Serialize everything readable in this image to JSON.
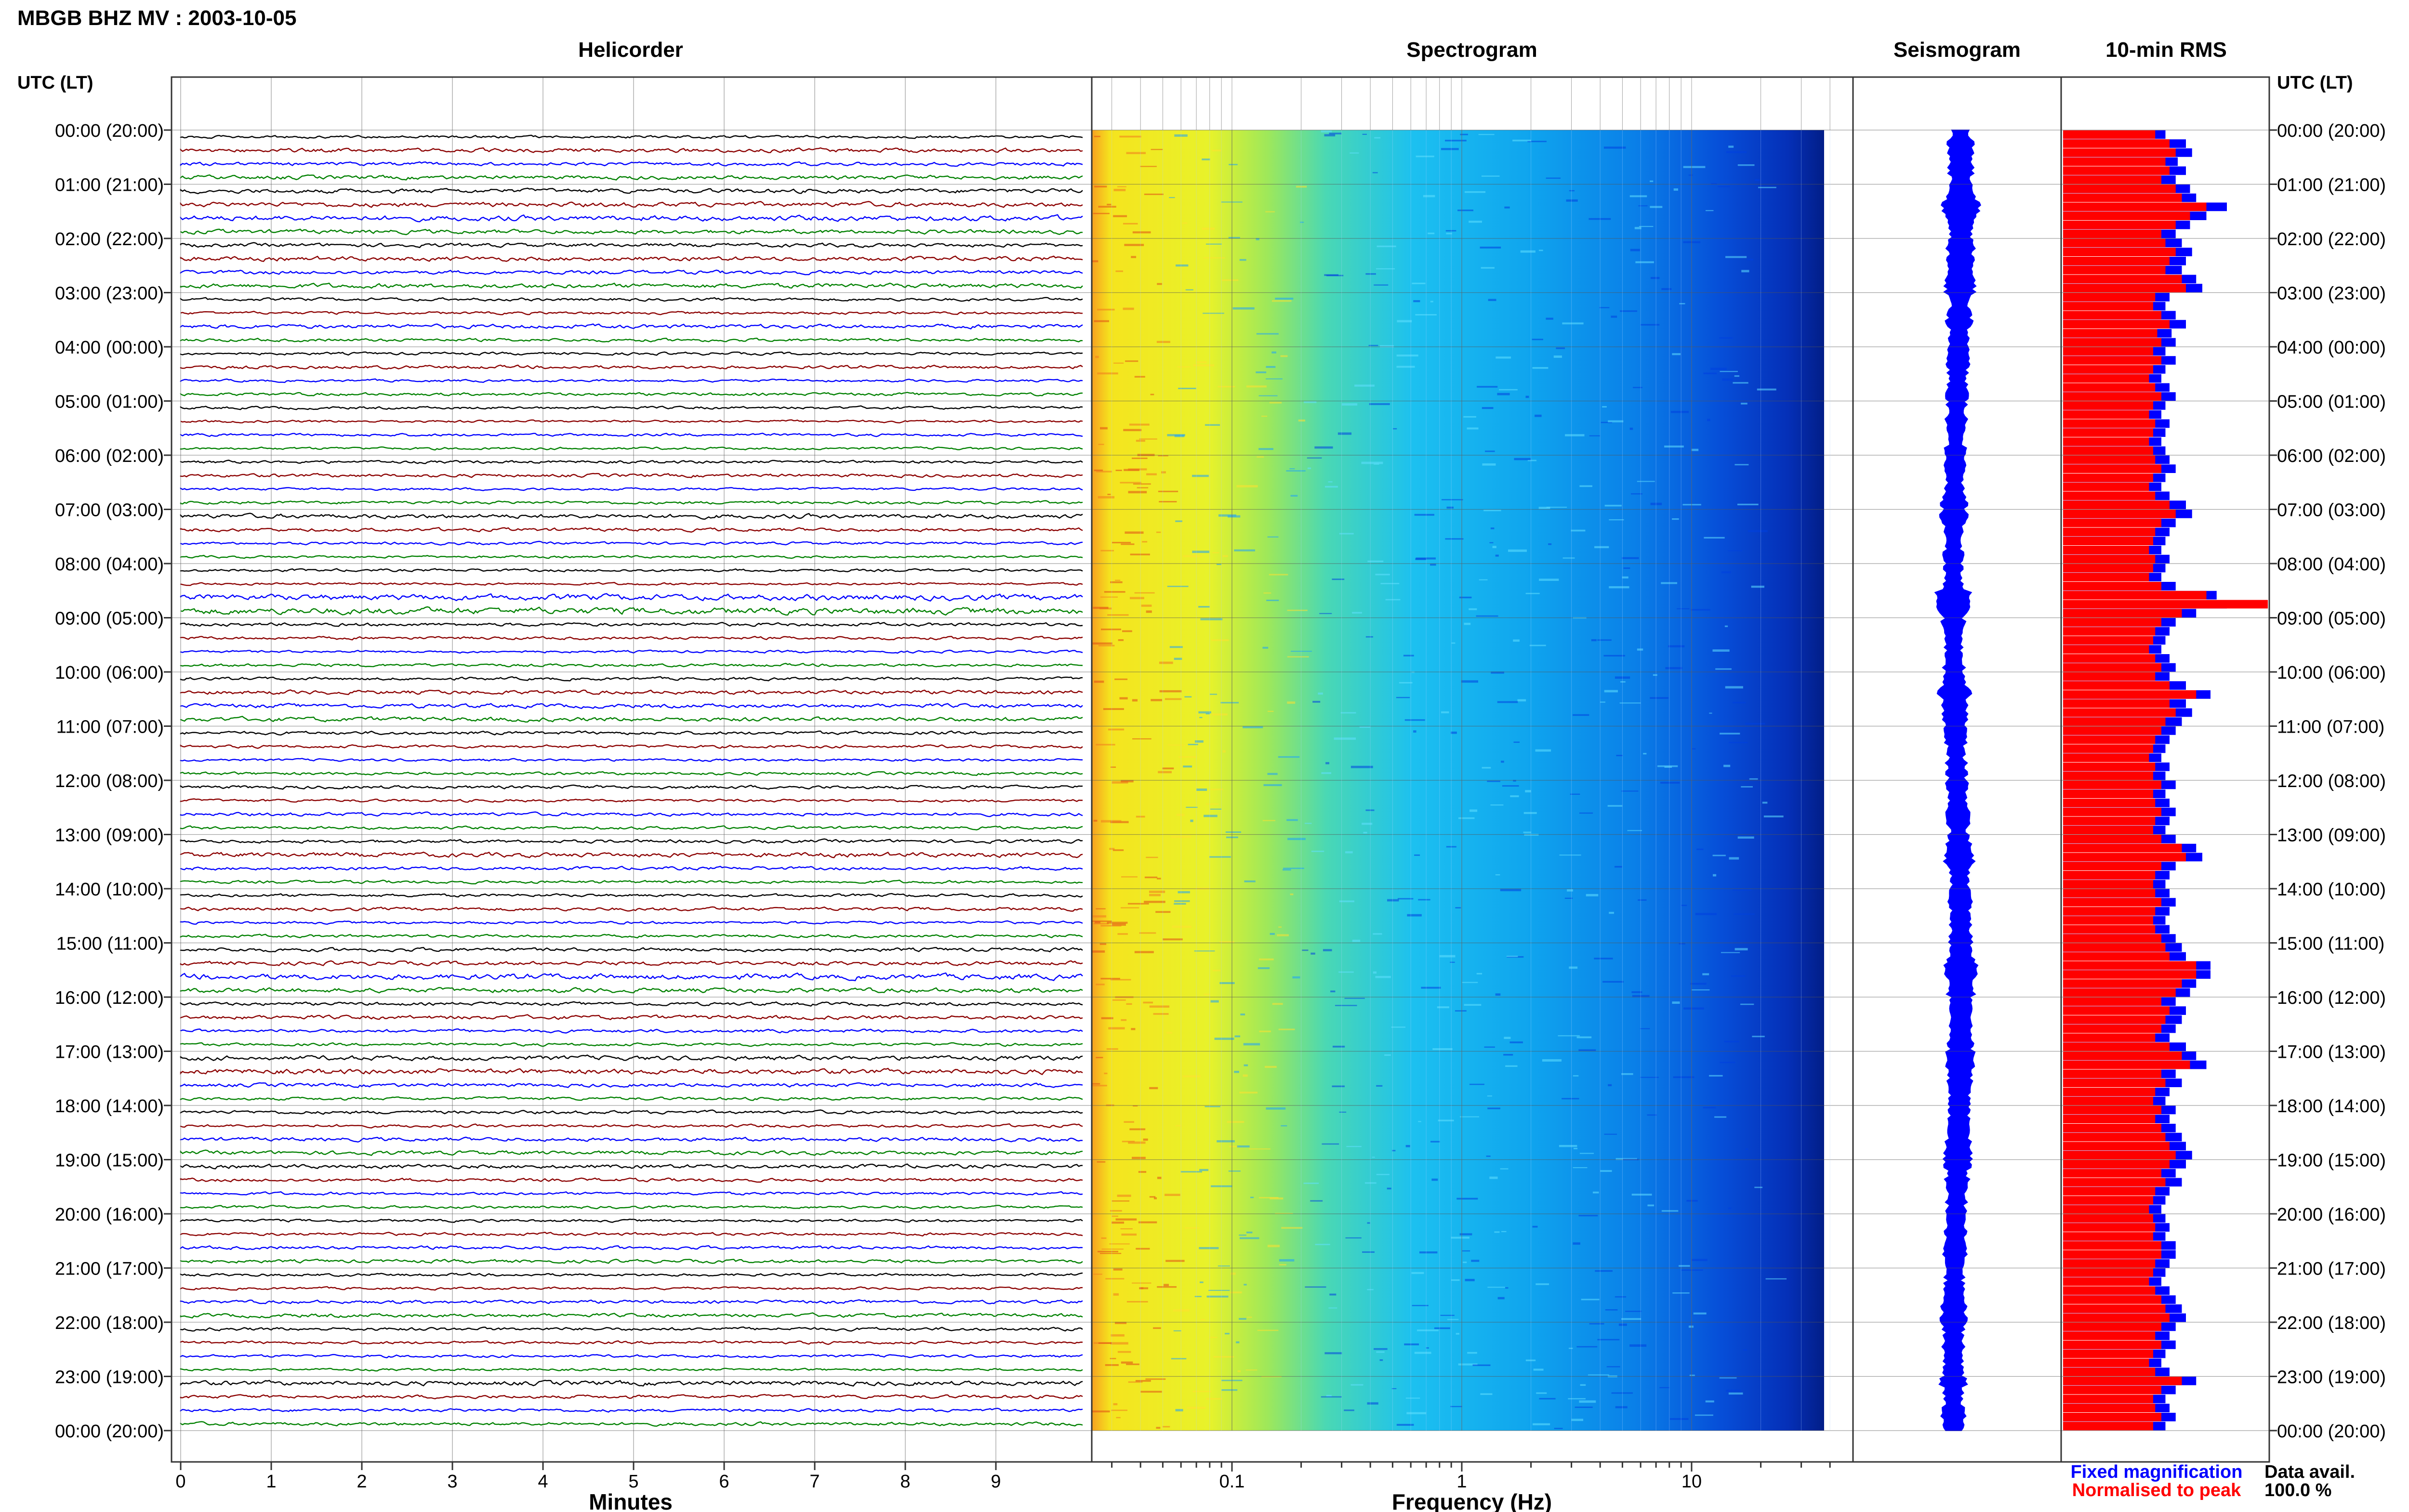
{
  "title": "MBGB BHZ MV : 2003-10-05",
  "time_axis": {
    "header": "UTC (LT)",
    "labels": [
      "00:00 (20:00)",
      "01:00 (21:00)",
      "02:00 (22:00)",
      "03:00 (23:00)",
      "04:00 (00:00)",
      "05:00 (01:00)",
      "06:00 (02:00)",
      "07:00 (03:00)",
      "08:00 (04:00)",
      "09:00 (05:00)",
      "10:00 (06:00)",
      "11:00 (07:00)",
      "12:00 (08:00)",
      "13:00 (09:00)",
      "14:00 (10:00)",
      "15:00 (11:00)",
      "16:00 (12:00)",
      "17:00 (13:00)",
      "18:00 (14:00)",
      "19:00 (15:00)",
      "20:00 (16:00)",
      "21:00 (17:00)",
      "22:00 (18:00)",
      "23:00 (19:00)",
      "00:00 (20:00)"
    ]
  },
  "panels": {
    "helicorder": "Helicorder",
    "spectrogram": "Spectrogram",
    "seismogram": "Seismogram",
    "rms": "10-min RMS"
  },
  "helicorder": {
    "xlabel": "Minutes",
    "ticks": [
      "0",
      "1",
      "2",
      "3",
      "4",
      "5",
      "6",
      "7",
      "8",
      "9"
    ],
    "trace_colors": [
      "#000000",
      "#8b0000",
      "#0000ff",
      "#008000"
    ]
  },
  "spectrogram": {
    "xlabel": "Frequency (Hz)",
    "ticks": [
      "0.1",
      "1",
      "10"
    ],
    "scale": "log",
    "colormap": [
      "#ff0000",
      "#ffa500",
      "#ffff00",
      "#00ffff",
      "#0000ff",
      "#00008b"
    ]
  },
  "legend": {
    "fixed": "Fixed magnification",
    "fixed_color": "#0000ff",
    "normalised": "Normalised to peak",
    "normalised_color": "#ff0000"
  },
  "data_avail": {
    "label": "Data avail.",
    "value": "100.0 %"
  },
  "chart_data": {
    "type": "bar",
    "orientation": "horizontal",
    "title": "10-min RMS",
    "x_start": "00:00",
    "x_end": "00:00",
    "interval_minutes": 10,
    "series": [
      {
        "name": "Fixed magnification",
        "color": "#0000ff",
        "values": [
          0.5,
          0.6,
          0.63,
          0.56,
          0.6,
          0.55,
          0.62,
          0.65,
          0.8,
          0.7,
          0.62,
          0.55,
          0.58,
          0.63,
          0.6,
          0.58,
          0.65,
          0.68,
          0.52,
          0.5,
          0.55,
          0.6,
          0.53,
          0.55,
          0.5,
          0.55,
          0.5,
          0.48,
          0.52,
          0.55,
          0.5,
          0.48,
          0.52,
          0.5,
          0.48,
          0.5,
          0.52,
          0.55,
          0.5,
          0.48,
          0.52,
          0.6,
          0.63,
          0.55,
          0.52,
          0.5,
          0.48,
          0.52,
          0.5,
          0.48,
          0.55,
          0.75,
          0.8,
          0.65,
          0.55,
          0.52,
          0.5,
          0.48,
          0.52,
          0.55,
          0.52,
          0.6,
          0.72,
          0.6,
          0.63,
          0.58,
          0.55,
          0.52,
          0.5,
          0.48,
          0.52,
          0.5,
          0.55,
          0.5,
          0.52,
          0.55,
          0.52,
          0.5,
          0.55,
          0.65,
          0.68,
          0.55,
          0.52,
          0.5,
          0.52,
          0.55,
          0.52,
          0.5,
          0.52,
          0.55,
          0.58,
          0.6,
          0.72,
          0.72,
          0.65,
          0.62,
          0.55,
          0.6,
          0.58,
          0.55,
          0.52,
          0.6,
          0.65,
          0.7,
          0.55,
          0.58,
          0.52,
          0.5,
          0.55,
          0.52,
          0.55,
          0.58,
          0.6,
          0.63,
          0.6,
          0.55,
          0.58,
          0.52,
          0.5,
          0.48,
          0.5,
          0.52,
          0.5,
          0.55,
          0.55,
          0.52,
          0.5,
          0.48,
          0.52,
          0.55,
          0.58,
          0.6,
          0.55,
          0.52,
          0.55,
          0.5,
          0.48,
          0.52,
          0.65,
          0.55,
          0.5,
          0.52,
          0.55,
          0.5
        ]
      },
      {
        "name": "Normalised to peak",
        "color": "#ff0000",
        "values": [
          0.45,
          0.52,
          0.55,
          0.5,
          0.52,
          0.48,
          0.55,
          0.58,
          0.7,
          0.62,
          0.55,
          0.48,
          0.5,
          0.55,
          0.52,
          0.5,
          0.58,
          0.6,
          0.45,
          0.44,
          0.48,
          0.52,
          0.46,
          0.48,
          0.44,
          0.48,
          0.44,
          0.42,
          0.45,
          0.48,
          0.44,
          0.42,
          0.45,
          0.44,
          0.42,
          0.44,
          0.45,
          0.48,
          0.44,
          0.42,
          0.45,
          0.52,
          0.55,
          0.48,
          0.45,
          0.44,
          0.42,
          0.45,
          0.44,
          0.42,
          0.48,
          0.7,
          1.0,
          0.58,
          0.48,
          0.45,
          0.44,
          0.42,
          0.45,
          0.48,
          0.45,
          0.52,
          0.65,
          0.52,
          0.55,
          0.5,
          0.48,
          0.45,
          0.44,
          0.42,
          0.45,
          0.44,
          0.48,
          0.44,
          0.45,
          0.48,
          0.45,
          0.44,
          0.48,
          0.58,
          0.6,
          0.48,
          0.45,
          0.44,
          0.45,
          0.48,
          0.45,
          0.44,
          0.45,
          0.48,
          0.5,
          0.52,
          0.65,
          0.65,
          0.58,
          0.55,
          0.48,
          0.52,
          0.5,
          0.48,
          0.45,
          0.52,
          0.58,
          0.62,
          0.48,
          0.5,
          0.45,
          0.44,
          0.48,
          0.45,
          0.48,
          0.5,
          0.52,
          0.55,
          0.52,
          0.48,
          0.5,
          0.45,
          0.44,
          0.42,
          0.44,
          0.45,
          0.44,
          0.48,
          0.48,
          0.45,
          0.44,
          0.42,
          0.45,
          0.48,
          0.5,
          0.52,
          0.48,
          0.45,
          0.48,
          0.44,
          0.42,
          0.45,
          0.58,
          0.48,
          0.44,
          0.45,
          0.48,
          0.44
        ]
      }
    ]
  }
}
